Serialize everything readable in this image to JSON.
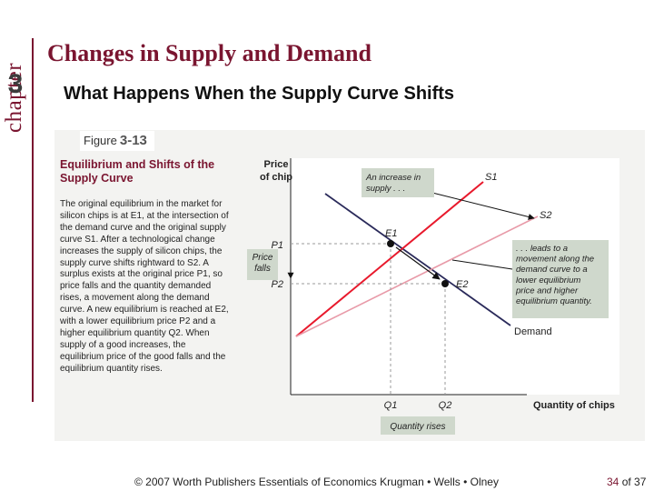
{
  "header": {
    "chapter_word": "chapter",
    "chapter_number": "3",
    "title": "Changes in Supply and Demand",
    "subtitle": "What Happens When the Supply Curve Shifts"
  },
  "figure": {
    "label": "Figure",
    "number": "3-13",
    "caption_title": "Equilibrium and Shifts of the Supply Curve",
    "caption_body": "The original equilibrium in the market for silicon chips is at E1, at the intersection of the demand curve and the original supply curve S1. After a technological change increases the supply of silicon chips, the supply curve shifts rightward to S2. A surplus exists at the original price P1, so price falls and the quantity demanded rises, a movement along the demand curve. A new equilibrium is reached at E2, with a lower equilibrium price P2 and a higher equilibrium quantity Q2. When supply of a good increases, the equilibrium price of the good falls and the equilibrium quantity rises."
  },
  "chart_data": {
    "type": "line",
    "ylabel": "Price of chip",
    "xlabel": "Quantity of chips",
    "series": [
      {
        "name": "S1",
        "color": "#e8192c"
      },
      {
        "name": "S2",
        "color": "#e89aa8"
      },
      {
        "name": "Demand",
        "color": "#2a2a5a"
      }
    ],
    "points": [
      {
        "name": "E1",
        "x_label": "Q1",
        "y_label": "P1"
      },
      {
        "name": "E2",
        "x_label": "Q2",
        "y_label": "P2"
      }
    ],
    "annotations": {
      "supply_increase": "An increase in supply . . .",
      "movement_along_demand": ". . . leads to a movement along the demand curve to a lower equilibrium price and higher equilibrium quantity.",
      "price_falls": "Price falls",
      "quantity_rises": "Quantity rises"
    },
    "colors": {
      "box": "#cfd8cc",
      "accent": "#7a1530"
    }
  },
  "footer": {
    "credit": "© 2007 Worth Publishers   Essentials of Economics   Krugman • Wells • Olney",
    "page_current": "34",
    "page_sep": " of ",
    "page_total": "37"
  }
}
